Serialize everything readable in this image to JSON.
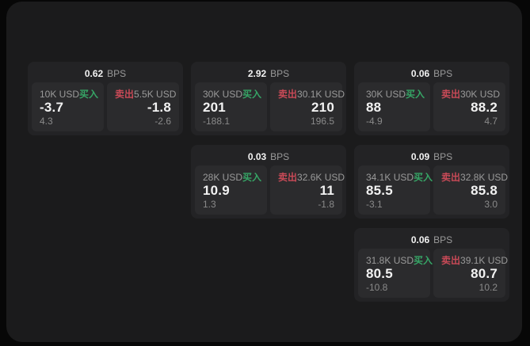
{
  "page": {
    "outer_background": "#070707",
    "panel_background": "#1b1b1c"
  },
  "colors": {
    "card_bg": "#232325",
    "tile_bg": "#2b2b2d",
    "buy_green": "#36a566",
    "sell_red": "#c94a57",
    "text_primary": "#f2f2f2",
    "text_secondary": "#9a9a9a",
    "text_muted": "#8a8a8a"
  },
  "labels": {
    "bps_unit": "BPS",
    "buy": "买入",
    "sell": "卖出"
  },
  "cards": [
    {
      "grid": {
        "row": 1,
        "col": 1
      },
      "bps": "0.62",
      "buy": {
        "size": "10K USD",
        "price": "-3.7",
        "delta": "4.3"
      },
      "sell": {
        "size": "5.5K USD",
        "price": "-1.8",
        "delta": "-2.6"
      }
    },
    {
      "grid": {
        "row": 1,
        "col": 2
      },
      "bps": "2.92",
      "buy": {
        "size": "30K USD",
        "price": "201",
        "delta": "-188.1"
      },
      "sell": {
        "size": "30.1K USD",
        "price": "210",
        "delta": "196.5"
      }
    },
    {
      "grid": {
        "row": 1,
        "col": 3
      },
      "bps": "0.06",
      "buy": {
        "size": "30K USD",
        "price": "88",
        "delta": "-4.9"
      },
      "sell": {
        "size": "30K USD",
        "price": "88.2",
        "delta": "4.7"
      }
    },
    {
      "grid": {
        "row": 2,
        "col": 2
      },
      "bps": "0.03",
      "buy": {
        "size": "28K USD",
        "price": "10.9",
        "delta": "1.3"
      },
      "sell": {
        "size": "32.6K USD",
        "price": "11",
        "delta": "-1.8"
      }
    },
    {
      "grid": {
        "row": 2,
        "col": 3
      },
      "bps": "0.09",
      "buy": {
        "size": "34.1K USD",
        "price": "85.5",
        "delta": "-3.1"
      },
      "sell": {
        "size": "32.8K USD",
        "price": "85.8",
        "delta": "3.0"
      }
    },
    {
      "grid": {
        "row": 3,
        "col": 3
      },
      "bps": "0.06",
      "buy": {
        "size": "31.8K USD",
        "price": "80.5",
        "delta": "-10.8"
      },
      "sell": {
        "size": "39.1K USD",
        "price": "80.7",
        "delta": "10.2"
      }
    }
  ]
}
